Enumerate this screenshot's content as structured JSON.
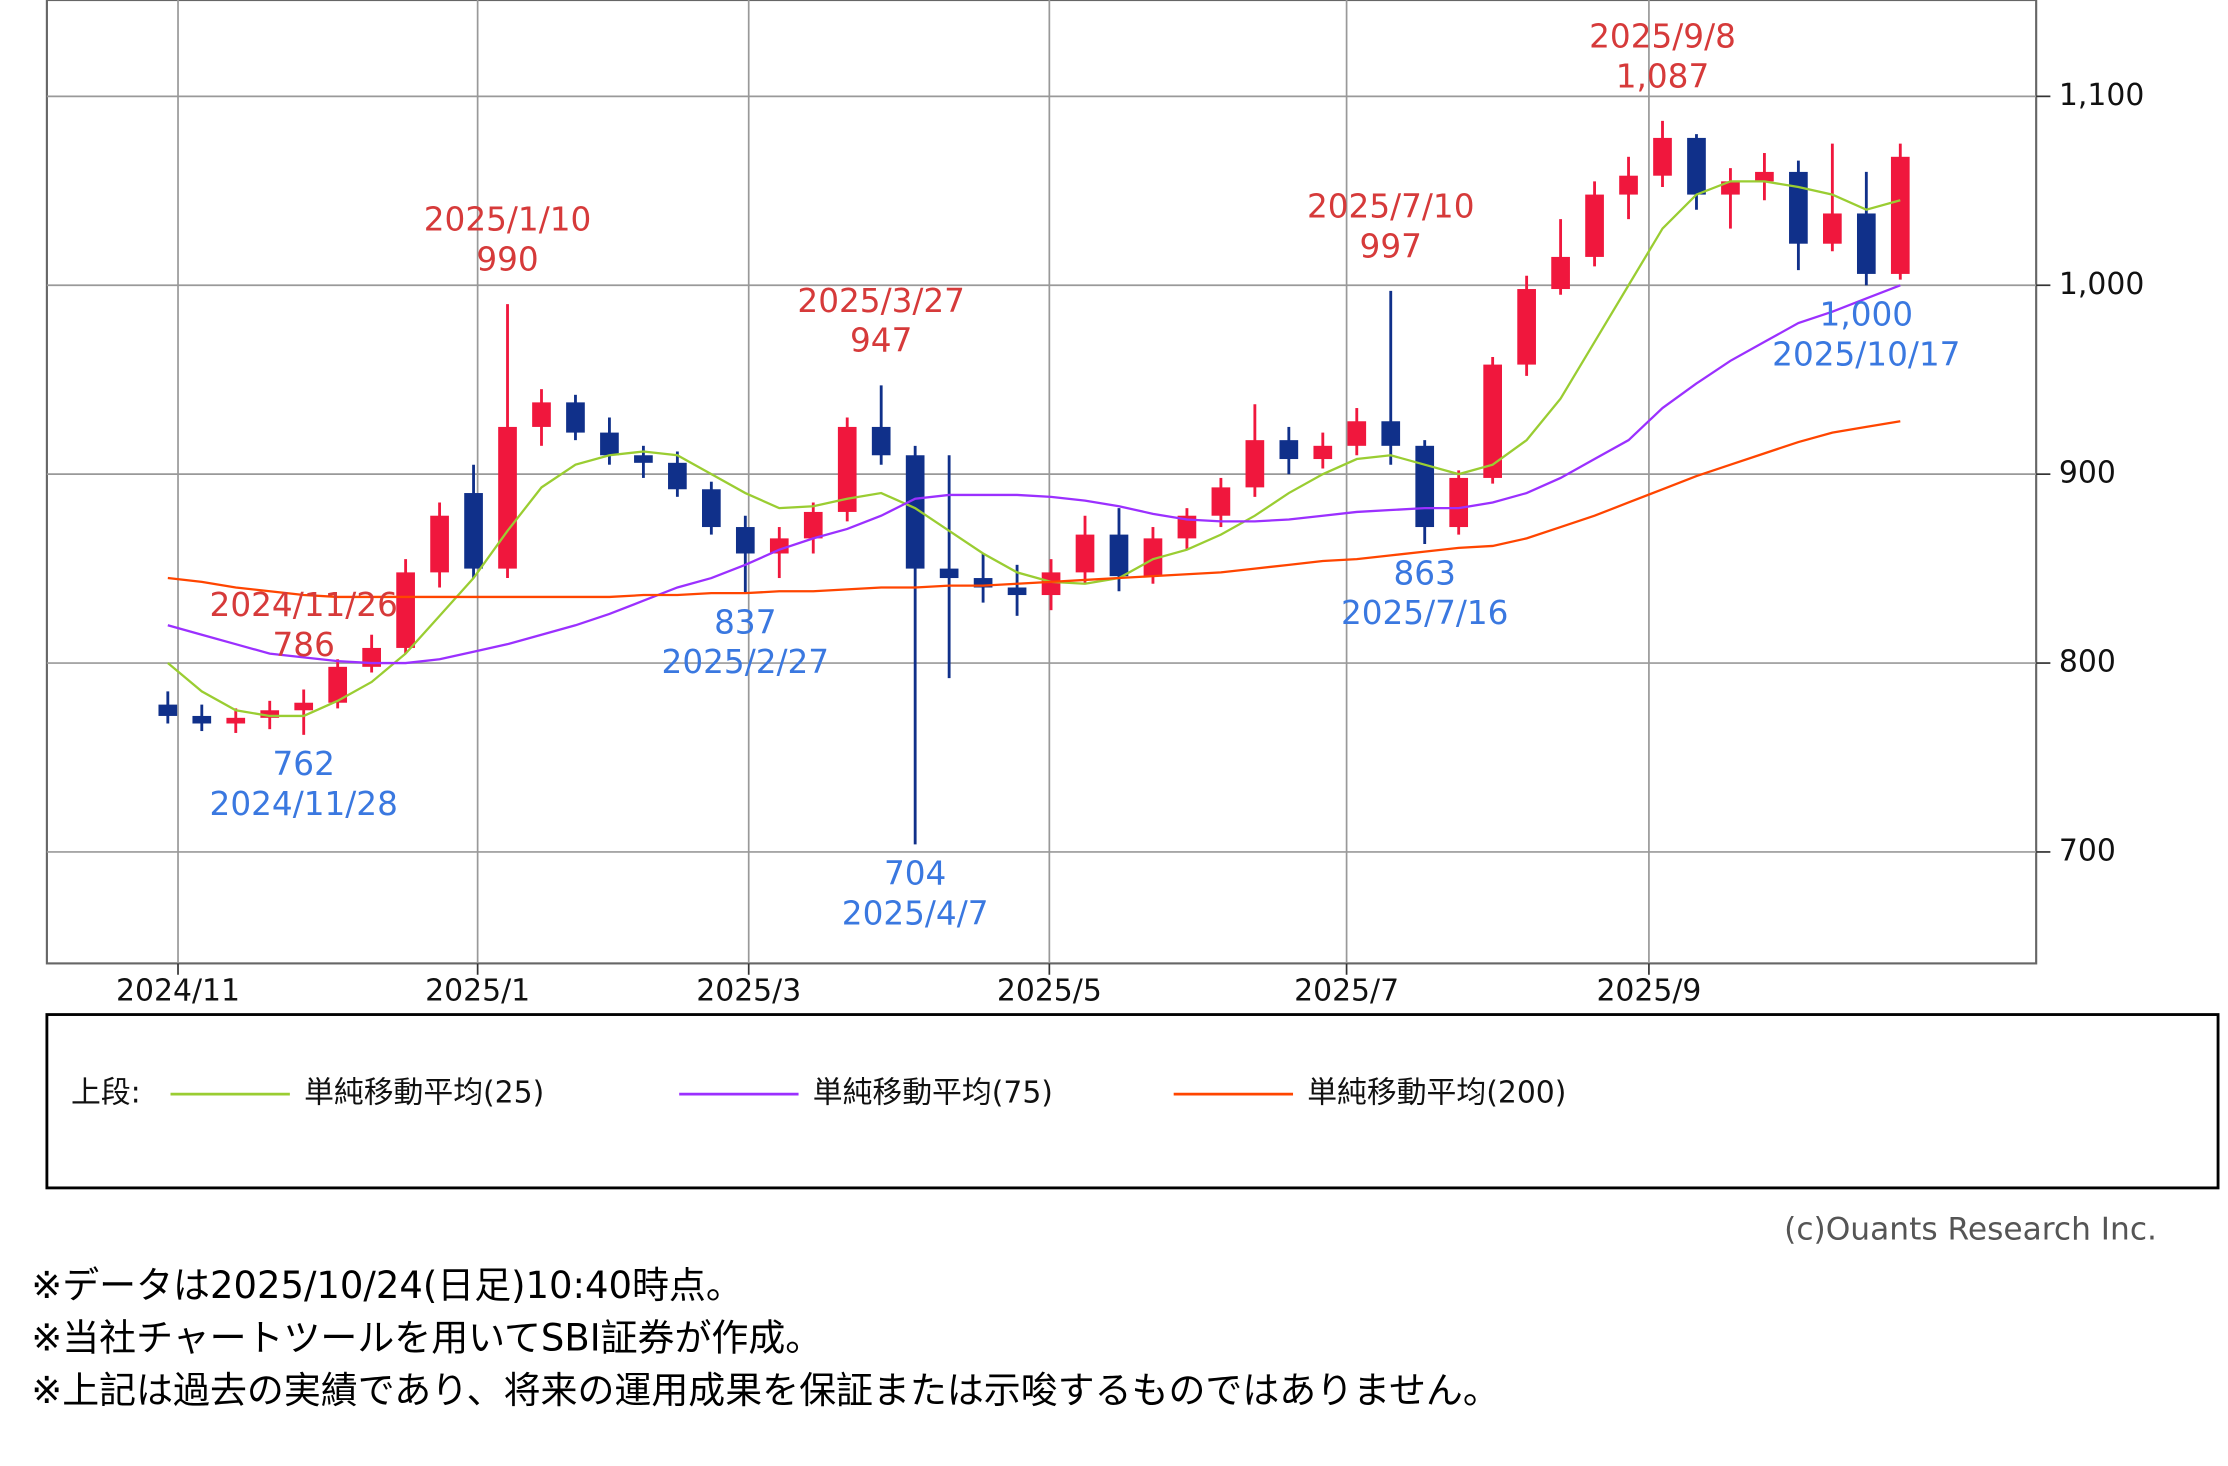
{
  "chart_data": {
    "type": "candlestick",
    "categories": [
      null,
      null,
      null,
      null,
      null,
      null,
      null,
      null,
      null,
      null,
      null,
      null,
      null,
      null,
      null,
      null,
      null,
      null,
      null,
      null,
      null,
      null,
      null,
      null,
      null,
      null,
      null,
      null,
      null,
      null,
      null,
      null,
      null,
      null,
      null,
      null,
      null,
      null,
      null,
      null,
      null,
      null,
      null,
      null,
      null,
      null,
      null,
      null,
      null,
      null,
      null,
      null
    ],
    "open": [
      778,
      772,
      768,
      771,
      775,
      779,
      798,
      808,
      848,
      890,
      850,
      925,
      938,
      922,
      910,
      906,
      892,
      872,
      858,
      866,
      880,
      925,
      910,
      850,
      845,
      840,
      836,
      848,
      868,
      846,
      866,
      878,
      893,
      918,
      908,
      915,
      928,
      915,
      872,
      898,
      958,
      998,
      1015,
      1048,
      1058,
      1078,
      1048,
      1055,
      1060,
      1022,
      1038,
      1006
    ],
    "high": [
      785,
      778,
      776,
      780,
      786,
      802,
      815,
      855,
      885,
      905,
      990,
      945,
      942,
      930,
      915,
      912,
      896,
      878,
      872,
      885,
      930,
      947,
      915,
      910,
      858,
      852,
      855,
      878,
      882,
      872,
      882,
      898,
      937,
      925,
      922,
      935,
      997,
      918,
      902,
      962,
      1005,
      1035,
      1055,
      1068,
      1087,
      1080,
      1062,
      1070,
      1066,
      1075,
      1060,
      1075
    ],
    "low": [
      768,
      764,
      763,
      765,
      762,
      776,
      795,
      805,
      840,
      845,
      845,
      915,
      918,
      905,
      898,
      888,
      868,
      837,
      845,
      858,
      875,
      905,
      704,
      792,
      832,
      825,
      828,
      842,
      838,
      842,
      860,
      872,
      888,
      900,
      903,
      910,
      905,
      863,
      868,
      895,
      952,
      995,
      1010,
      1035,
      1052,
      1040,
      1030,
      1045,
      1008,
      1018,
      1000,
      1003
    ],
    "close": [
      772,
      768,
      771,
      775,
      779,
      798,
      808,
      848,
      878,
      850,
      925,
      938,
      922,
      910,
      906,
      892,
      872,
      858,
      866,
      880,
      925,
      910,
      850,
      845,
      840,
      836,
      848,
      868,
      846,
      866,
      878,
      893,
      918,
      908,
      915,
      928,
      915,
      872,
      898,
      958,
      998,
      1015,
      1048,
      1058,
      1078,
      1048,
      1055,
      1060,
      1022,
      1038,
      1006,
      1068
    ],
    "up_color": "#f0173d",
    "down_color": "#10308a",
    "series": [
      {
        "name": "単純移動平均(25)",
        "color": "#9acd32",
        "values": [
          800,
          785,
          775,
          772,
          772,
          780,
          790,
          805,
          825,
          845,
          870,
          893,
          905,
          910,
          912,
          910,
          900,
          890,
          882,
          883,
          887,
          890,
          882,
          870,
          858,
          848,
          843,
          842,
          845,
          855,
          860,
          868,
          878,
          890,
          900,
          908,
          910,
          905,
          900,
          905,
          918,
          940,
          970,
          1000,
          1030,
          1048,
          1055,
          1055,
          1052,
          1048,
          1040,
          1045
        ]
      },
      {
        "name": "単純移動平均(75)",
        "color": "#9b30ff",
        "values": [
          820,
          815,
          810,
          805,
          803,
          801,
          800,
          800,
          802,
          806,
          810,
          815,
          820,
          826,
          833,
          840,
          845,
          852,
          860,
          866,
          871,
          878,
          887,
          889,
          889,
          889,
          888,
          886,
          883,
          879,
          876,
          875,
          875,
          876,
          878,
          880,
          881,
          882,
          882,
          885,
          890,
          898,
          908,
          918,
          935,
          948,
          960,
          970,
          980,
          986,
          993,
          1000
        ]
      },
      {
        "name": "単純移動平均(200)",
        "color": "#ff4500",
        "values": [
          845,
          843,
          840,
          838,
          836,
          835,
          835,
          835,
          835,
          835,
          835,
          835,
          835,
          835,
          836,
          836,
          837,
          837,
          838,
          838,
          839,
          840,
          840,
          841,
          841,
          842,
          843,
          844,
          845,
          846,
          847,
          848,
          850,
          852,
          854,
          855,
          857,
          859,
          861,
          862,
          866,
          872,
          878,
          885,
          892,
          899,
          905,
          911,
          917,
          922,
          925,
          928
        ]
      }
    ],
    "legend_title": "上段:",
    "xlim": [
      -3.56,
      55
    ],
    "xticks": [
      {
        "value": 0.3,
        "label": "2024/11"
      },
      {
        "value": 9.12,
        "label": "2025/1"
      },
      {
        "value": 17.1,
        "label": "2025/3"
      },
      {
        "value": 25.95,
        "label": "2025/5"
      },
      {
        "value": 34.7,
        "label": "2025/7"
      },
      {
        "value": 43.6,
        "label": "2025/9"
      }
    ],
    "ylim": [
      641,
      1151
    ],
    "yticks": [
      700,
      800,
      900,
      {
        "value": 1000,
        "label": "1,000"
      },
      {
        "value": 1100,
        "label": "1,100"
      }
    ],
    "grid": true,
    "annotations": [
      {
        "kind": "high",
        "date": "2024/11/26",
        "value": 786
      },
      {
        "kind": "high",
        "date": "2025/1/10",
        "value": 990
      },
      {
        "kind": "high",
        "date": "2025/3/27",
        "value": 947
      },
      {
        "kind": "high",
        "date": "2025/7/10",
        "value": 997
      },
      {
        "kind": "high",
        "date": "2025/9/8",
        "value": {
          "value": 1087,
          "label": "1,087"
        }
      },
      {
        "kind": "low",
        "date": "2024/11/28",
        "value": 762
      },
      {
        "kind": "low",
        "date": "2025/2/27",
        "value": 837
      },
      {
        "kind": "low",
        "date": "2025/4/7",
        "value": 704
      },
      {
        "kind": "low",
        "date": "2025/7/16",
        "value": 863
      },
      {
        "kind": "low",
        "date": "2025/10/17",
        "value": {
          "value": 1000,
          "label": "1,000"
        }
      }
    ],
    "high_color": "#d63a3a",
    "low_color": "#3a78e0"
  },
  "credit": "(c)Ouants Research Inc.",
  "notes": [
    "※データは2025/10/24(日足)10:40時点。",
    "※当社チャートツールを用いてSBI証券が作成。",
    "※上記は過去の実績であり、将来の運用成果を保証または示唆するものではありません。"
  ]
}
